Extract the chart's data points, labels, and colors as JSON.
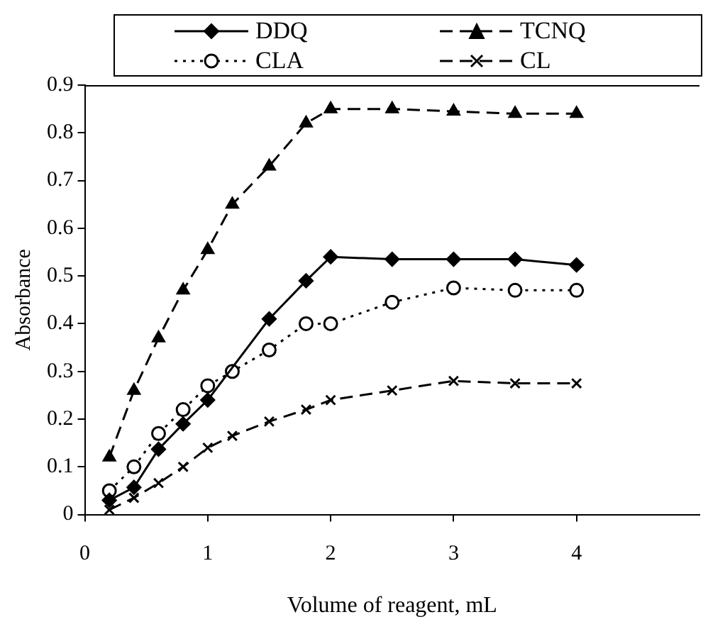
{
  "chart_data": {
    "type": "line",
    "xlabel": "Volume of reagent, mL",
    "ylabel": "Absorbance",
    "x": [
      0.2,
      0.4,
      0.6,
      0.8,
      1.0,
      1.2,
      1.5,
      1.8,
      2.0,
      2.5,
      3.0,
      3.5,
      4.0
    ],
    "series": [
      {
        "name": "DDQ",
        "color": "#000000",
        "marker": "diamond",
        "line_style": "solid",
        "values": [
          0.03,
          0.057,
          0.137,
          0.19,
          0.24,
          null,
          0.41,
          0.49,
          0.54,
          0.535,
          0.535,
          0.535,
          0.523
        ]
      },
      {
        "name": "TCNQ",
        "color": "#000000",
        "marker": "triangle",
        "line_style": "dashed",
        "values": [
          0.12,
          0.26,
          0.37,
          0.47,
          0.555,
          0.65,
          0.73,
          0.82,
          0.85,
          0.85,
          0.845,
          0.84,
          0.84
        ]
      },
      {
        "name": "CLA",
        "color": "#000000",
        "marker": "circle",
        "line_style": "dotted",
        "values": [
          0.05,
          0.1,
          0.17,
          0.22,
          0.27,
          0.3,
          0.345,
          0.4,
          0.4,
          0.445,
          0.475,
          0.47,
          0.47
        ]
      },
      {
        "name": "CL",
        "color": "#000000",
        "marker": "cross",
        "line_style": "dashed",
        "values": [
          0.01,
          0.035,
          0.066,
          0.1,
          0.14,
          0.165,
          0.195,
          0.22,
          0.24,
          0.26,
          0.28,
          0.275,
          0.275
        ]
      }
    ],
    "xlim": [
      0,
      5
    ],
    "xticks": [
      0,
      1,
      2,
      3,
      4
    ],
    "ylim": [
      0,
      0.9
    ],
    "yticks": [
      0,
      0.1,
      0.2,
      0.3,
      0.4,
      0.5,
      0.6,
      0.7,
      0.8,
      0.9
    ],
    "grid": false,
    "legend": "top"
  }
}
